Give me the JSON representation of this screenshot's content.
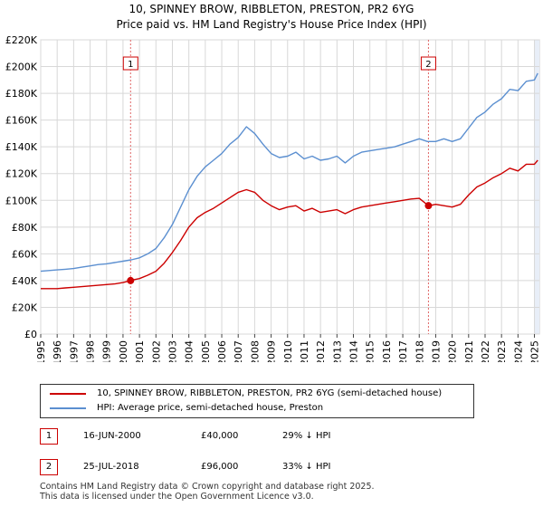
{
  "title_line1": "10, SPINNEY BROW, RIBBLETON, PRESTON, PR2 6YG",
  "title_line2": "Price paid vs. HM Land Registry's House Price Index (HPI)",
  "colors": {
    "property": "#cc0000",
    "hpi": "#5b8fd0",
    "marker_line": "#e06666",
    "shade": "#e8eef8",
    "grid": "#d8d8d8"
  },
  "chart_data": {
    "type": "line",
    "title": "10, SPINNEY BROW, RIBBLETON, PRESTON, PR2 6YG",
    "subtitle": "Price paid vs. HM Land Registry's House Price Index (HPI)",
    "xlabel": "",
    "ylabel": "",
    "xlim": [
      1995,
      2025
    ],
    "ylim": [
      0,
      220000
    ],
    "grid": true,
    "y_ticks": [
      {
        "value": 0,
        "label": "£0"
      },
      {
        "value": 20000,
        "label": "£20K"
      },
      {
        "value": 40000,
        "label": "£40K"
      },
      {
        "value": 60000,
        "label": "£60K"
      },
      {
        "value": 80000,
        "label": "£80K"
      },
      {
        "value": 100000,
        "label": "£100K"
      },
      {
        "value": 120000,
        "label": "£120K"
      },
      {
        "value": 140000,
        "label": "£140K"
      },
      {
        "value": 160000,
        "label": "£160K"
      },
      {
        "value": 180000,
        "label": "£180K"
      },
      {
        "value": 200000,
        "label": "£200K"
      },
      {
        "value": 220000,
        "label": "£220K"
      }
    ],
    "x_ticks": [
      "1995",
      "1996",
      "1997",
      "1998",
      "1999",
      "2000",
      "2001",
      "2002",
      "2003",
      "2004",
      "2005",
      "2006",
      "2007",
      "2008",
      "2009",
      "2010",
      "2011",
      "2012",
      "2013",
      "2014",
      "2015",
      "2016",
      "2017",
      "2018",
      "2019",
      "2020",
      "2021",
      "2022",
      "2023",
      "2024",
      "2025"
    ],
    "shaded_span": [
      2025.0,
      2025.3
    ],
    "series": [
      {
        "name": "HPI",
        "x": [
          1995.0,
          1995.5,
          1996.0,
          1996.5,
          1997.0,
          1997.5,
          1998.0,
          1998.5,
          1999.0,
          1999.5,
          2000.0,
          2000.5,
          2001.0,
          2001.5,
          2002.0,
          2002.5,
          2003.0,
          2003.5,
          2004.0,
          2004.5,
          2005.0,
          2005.5,
          2006.0,
          2006.5,
          2007.0,
          2007.5,
          2008.0,
          2008.5,
          2009.0,
          2009.5,
          2010.0,
          2010.5,
          2011.0,
          2011.5,
          2012.0,
          2012.5,
          2013.0,
          2013.5,
          2014.0,
          2014.5,
          2015.0,
          2015.5,
          2016.0,
          2016.5,
          2017.0,
          2017.5,
          2018.0,
          2018.5,
          2019.0,
          2019.5,
          2020.0,
          2020.5,
          2021.0,
          2021.5,
          2022.0,
          2022.5,
          2023.0,
          2023.5,
          2024.0,
          2024.5,
          2025.0,
          2025.2
        ],
        "values": [
          47000,
          47500,
          48000,
          48500,
          49000,
          50000,
          51000,
          52000,
          52500,
          53500,
          54500,
          55500,
          57000,
          60000,
          64000,
          72000,
          82000,
          95000,
          108000,
          118000,
          125000,
          130000,
          135000,
          142000,
          147000,
          155000,
          150000,
          142000,
          135000,
          132000,
          133000,
          136000,
          131000,
          133000,
          130000,
          131000,
          133000,
          128000,
          133000,
          136000,
          137000,
          138000,
          139000,
          140000,
          142000,
          144000,
          146000,
          144000,
          144000,
          146000,
          144000,
          146000,
          154000,
          162000,
          166000,
          172000,
          176000,
          183000,
          182000,
          189000,
          190000,
          195000
        ]
      },
      {
        "name": "10, SPINNEY BROW, RIBBLETON, PRESTON, PR2 6YG (semi-detached house)",
        "x": [
          1995.0,
          1995.5,
          1996.0,
          1996.5,
          1997.0,
          1997.5,
          1998.0,
          1998.5,
          1999.0,
          1999.5,
          2000.0,
          2000.46,
          2000.5,
          2001.0,
          2001.5,
          2002.0,
          2002.5,
          2003.0,
          2003.5,
          2004.0,
          2004.5,
          2005.0,
          2005.5,
          2006.0,
          2006.5,
          2007.0,
          2007.5,
          2008.0,
          2008.5,
          2009.0,
          2009.5,
          2010.0,
          2010.5,
          2011.0,
          2011.5,
          2012.0,
          2012.5,
          2013.0,
          2013.5,
          2014.0,
          2014.5,
          2015.0,
          2015.5,
          2016.0,
          2016.5,
          2017.0,
          2017.5,
          2018.0,
          2018.56,
          2018.6,
          2019.0,
          2019.5,
          2020.0,
          2020.5,
          2021.0,
          2021.5,
          2022.0,
          2022.5,
          2023.0,
          2023.5,
          2024.0,
          2024.5,
          2025.0,
          2025.2
        ],
        "values": [
          34000,
          34000,
          34000,
          34500,
          35000,
          35500,
          36000,
          36500,
          37000,
          37500,
          38500,
          40000,
          40200,
          41500,
          44000,
          47000,
          53000,
          61000,
          70000,
          80000,
          87000,
          91000,
          94000,
          98000,
          102000,
          106000,
          108000,
          106000,
          100000,
          96000,
          93000,
          95000,
          96000,
          92000,
          94000,
          91000,
          92000,
          93000,
          90000,
          93000,
          95000,
          96000,
          97000,
          98000,
          99000,
          100000,
          101000,
          101500,
          96000,
          96000,
          97000,
          96000,
          95000,
          97000,
          104000,
          110000,
          113000,
          117000,
          120000,
          124000,
          122000,
          127000,
          127000,
          130000
        ]
      }
    ],
    "annotations": [
      {
        "id": "1",
        "x": 2000.46,
        "y": 40000
      },
      {
        "id": "2",
        "x": 2018.56,
        "y": 96000
      }
    ]
  },
  "legend": {
    "property_label": "10, SPINNEY BROW, RIBBLETON, PRESTON, PR2 6YG (semi-detached house)",
    "hpi_label": "HPI: Average price, semi-detached house, Preston"
  },
  "transactions": [
    {
      "id": "1",
      "date": "16-JUN-2000",
      "price": "£40,000",
      "hpi_diff": "29% ↓ HPI"
    },
    {
      "id": "2",
      "date": "25-JUL-2018",
      "price": "£96,000",
      "hpi_diff": "33% ↓ HPI"
    }
  ],
  "footer": {
    "line1": "Contains HM Land Registry data © Crown copyright and database right 2025.",
    "line2": "This data is licensed under the Open Government Licence v3.0."
  }
}
